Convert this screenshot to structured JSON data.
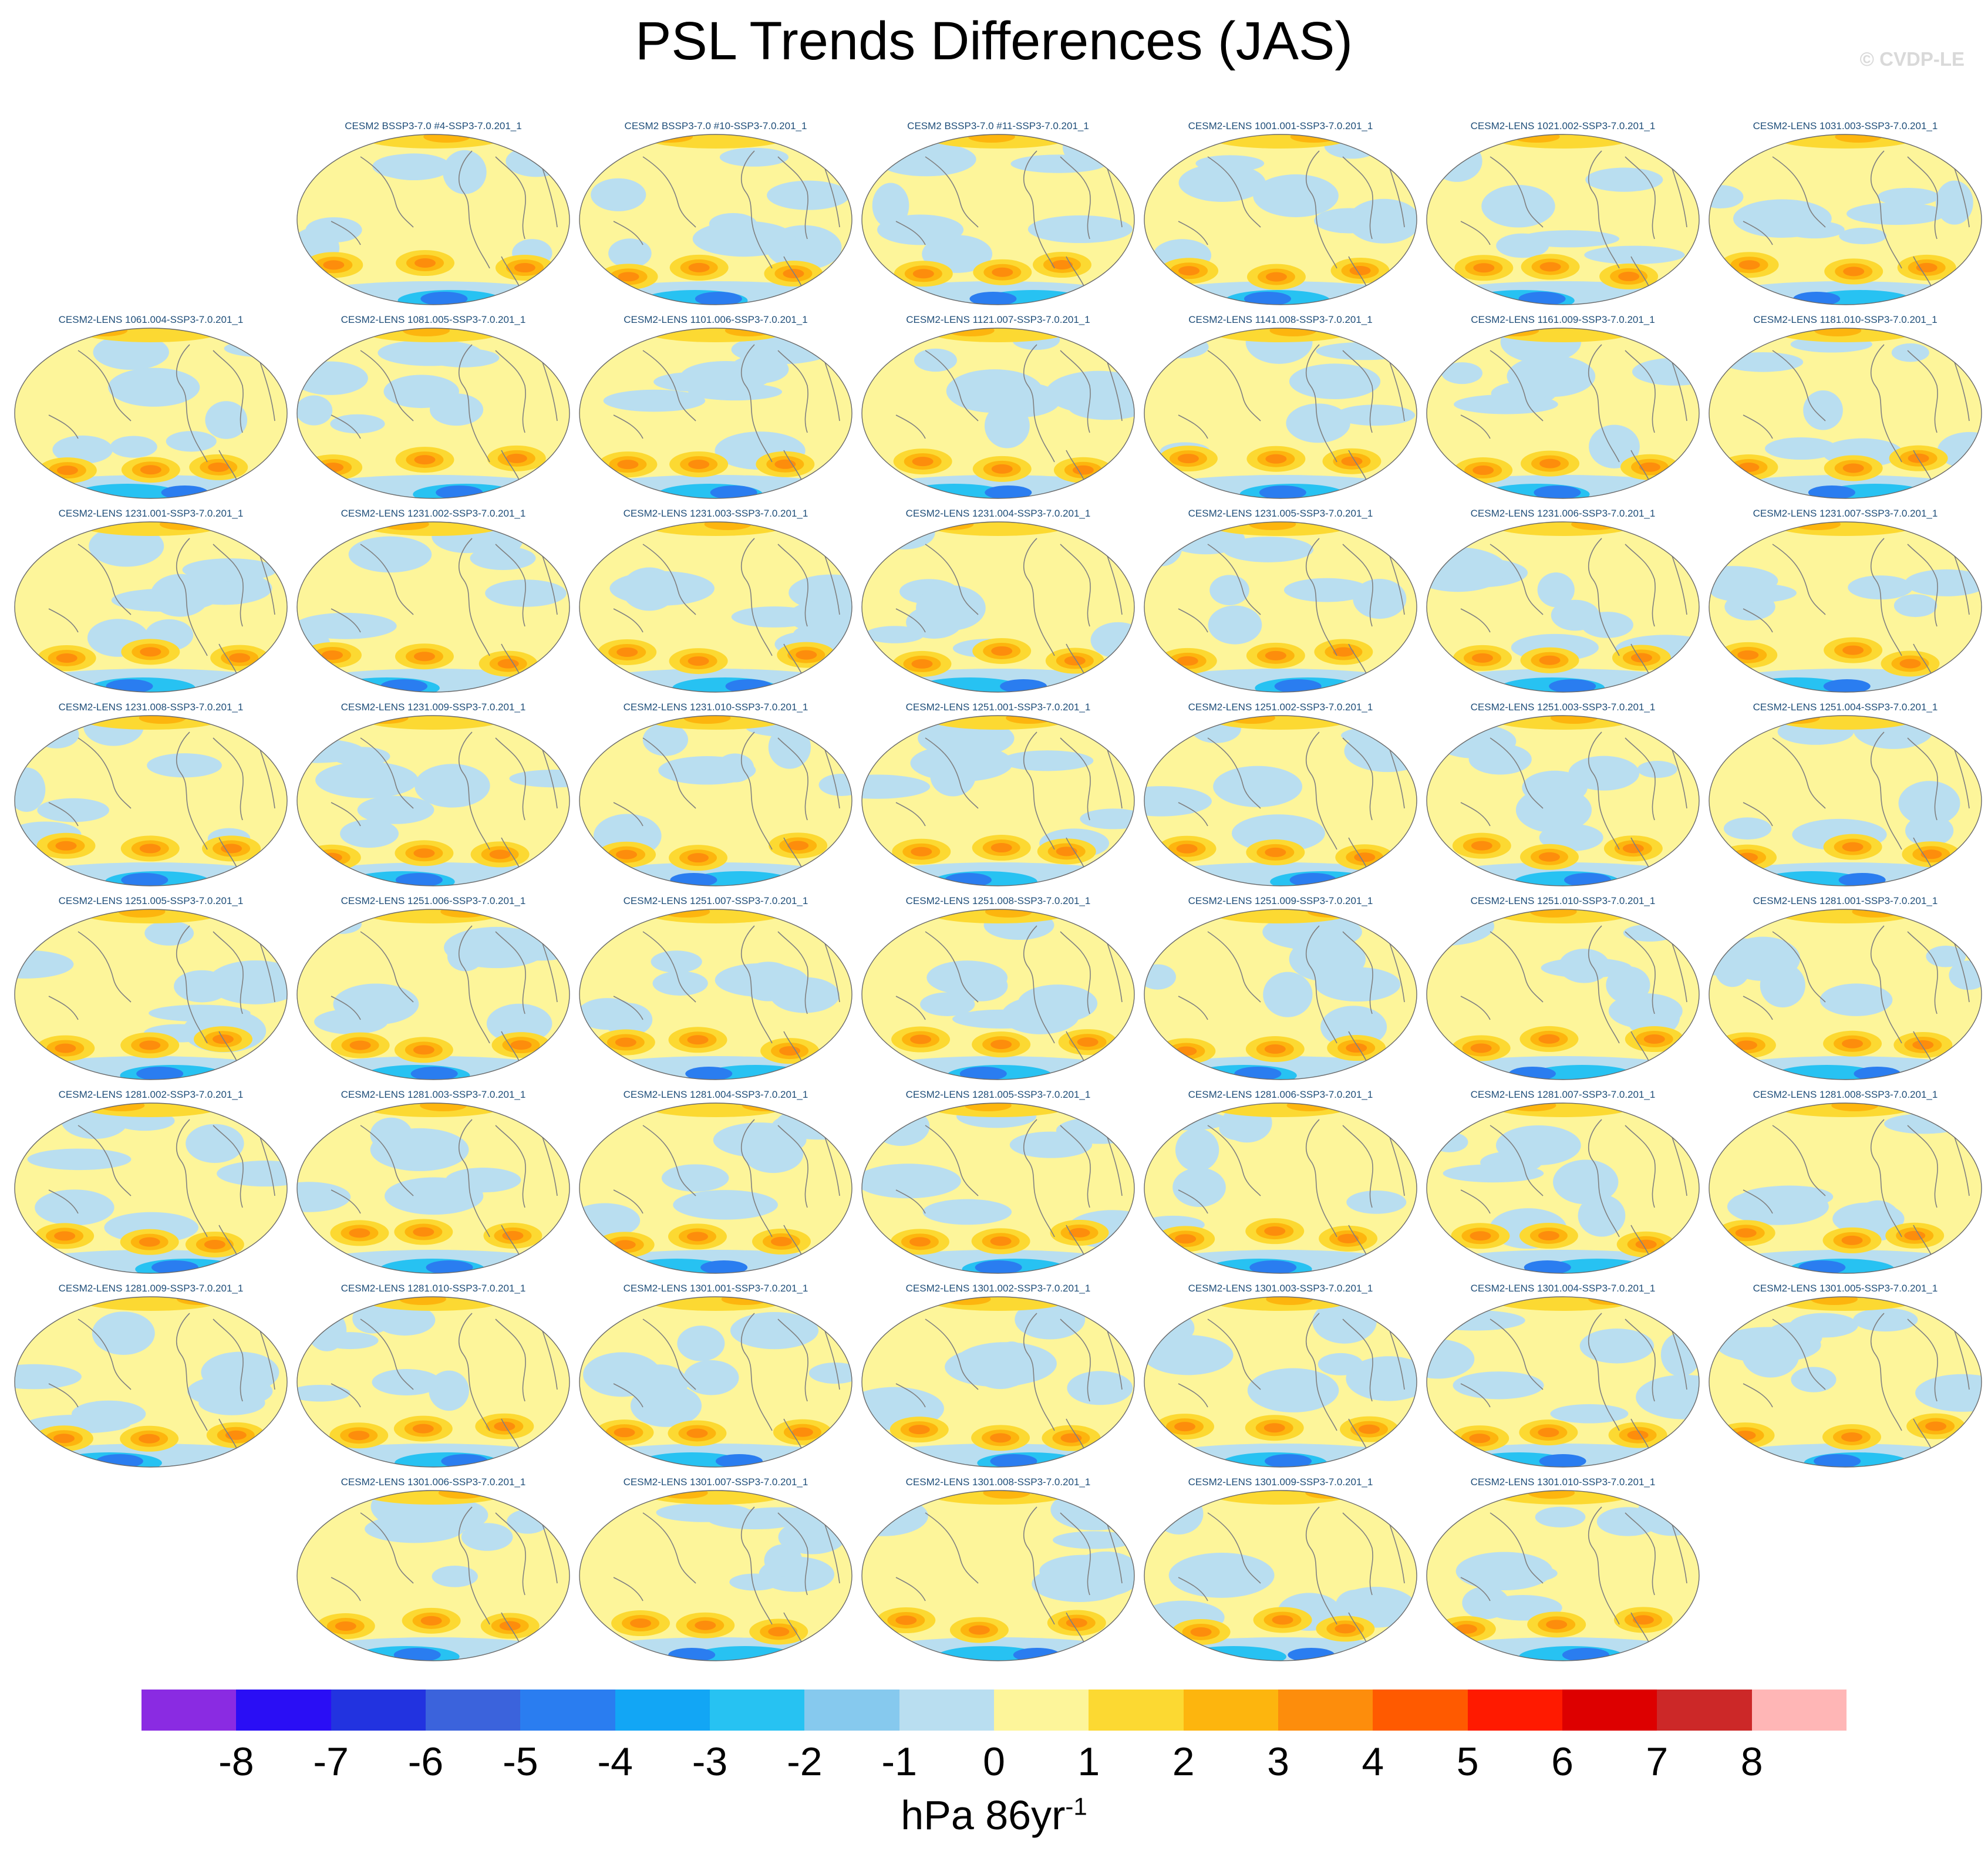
{
  "title": "PSL Trends Differences (JAS)",
  "credit": "© CVDP-LE",
  "panels": [
    {
      "name": "CESM2 BSSP3-7.0 #4-SSP3-7.0.201_1",
      "row": 0,
      "col": 1
    },
    {
      "name": "CESM2 BSSP3-7.0 #10-SSP3-7.0.201_1",
      "row": 0,
      "col": 2
    },
    {
      "name": "CESM2 BSSP3-7.0 #11-SSP3-7.0.201_1",
      "row": 0,
      "col": 3
    },
    {
      "name": "CESM2-LENS 1001.001-SSP3-7.0.201_1",
      "row": 0,
      "col": 4
    },
    {
      "name": "CESM2-LENS 1021.002-SSP3-7.0.201_1",
      "row": 0,
      "col": 5
    },
    {
      "name": "CESM2-LENS 1031.003-SSP3-7.0.201_1",
      "row": 0,
      "col": 6
    },
    {
      "name": "CESM2-LENS 1061.004-SSP3-7.0.201_1",
      "row": 1,
      "col": 0
    },
    {
      "name": "CESM2-LENS 1081.005-SSP3-7.0.201_1",
      "row": 1,
      "col": 1
    },
    {
      "name": "CESM2-LENS 1101.006-SSP3-7.0.201_1",
      "row": 1,
      "col": 2
    },
    {
      "name": "CESM2-LENS 1121.007-SSP3-7.0.201_1",
      "row": 1,
      "col": 3
    },
    {
      "name": "CESM2-LENS 1141.008-SSP3-7.0.201_1",
      "row": 1,
      "col": 4
    },
    {
      "name": "CESM2-LENS 1161.009-SSP3-7.0.201_1",
      "row": 1,
      "col": 5
    },
    {
      "name": "CESM2-LENS 1181.010-SSP3-7.0.201_1",
      "row": 1,
      "col": 6
    },
    {
      "name": "CESM2-LENS 1231.001-SSP3-7.0.201_1",
      "row": 2,
      "col": 0
    },
    {
      "name": "CESM2-LENS 1231.002-SSP3-7.0.201_1",
      "row": 2,
      "col": 1
    },
    {
      "name": "CESM2-LENS 1231.003-SSP3-7.0.201_1",
      "row": 2,
      "col": 2
    },
    {
      "name": "CESM2-LENS 1231.004-SSP3-7.0.201_1",
      "row": 2,
      "col": 3
    },
    {
      "name": "CESM2-LENS 1231.005-SSP3-7.0.201_1",
      "row": 2,
      "col": 4
    },
    {
      "name": "CESM2-LENS 1231.006-SSP3-7.0.201_1",
      "row": 2,
      "col": 5
    },
    {
      "name": "CESM2-LENS 1231.007-SSP3-7.0.201_1",
      "row": 2,
      "col": 6
    },
    {
      "name": "CESM2-LENS 1231.008-SSP3-7.0.201_1",
      "row": 3,
      "col": 0
    },
    {
      "name": "CESM2-LENS 1231.009-SSP3-7.0.201_1",
      "row": 3,
      "col": 1
    },
    {
      "name": "CESM2-LENS 1231.010-SSP3-7.0.201_1",
      "row": 3,
      "col": 2
    },
    {
      "name": "CESM2-LENS 1251.001-SSP3-7.0.201_1",
      "row": 3,
      "col": 3
    },
    {
      "name": "CESM2-LENS 1251.002-SSP3-7.0.201_1",
      "row": 3,
      "col": 4
    },
    {
      "name": "CESM2-LENS 1251.003-SSP3-7.0.201_1",
      "row": 3,
      "col": 5
    },
    {
      "name": "CESM2-LENS 1251.004-SSP3-7.0.201_1",
      "row": 3,
      "col": 6
    },
    {
      "name": "CESM2-LENS 1251.005-SSP3-7.0.201_1",
      "row": 4,
      "col": 0
    },
    {
      "name": "CESM2-LENS 1251.006-SSP3-7.0.201_1",
      "row": 4,
      "col": 1
    },
    {
      "name": "CESM2-LENS 1251.007-SSP3-7.0.201_1",
      "row": 4,
      "col": 2
    },
    {
      "name": "CESM2-LENS 1251.008-SSP3-7.0.201_1",
      "row": 4,
      "col": 3
    },
    {
      "name": "CESM2-LENS 1251.009-SSP3-7.0.201_1",
      "row": 4,
      "col": 4
    },
    {
      "name": "CESM2-LENS 1251.010-SSP3-7.0.201_1",
      "row": 4,
      "col": 5
    },
    {
      "name": "CESM2-LENS 1281.001-SSP3-7.0.201_1",
      "row": 4,
      "col": 6
    },
    {
      "name": "CESM2-LENS 1281.002-SSP3-7.0.201_1",
      "row": 5,
      "col": 0
    },
    {
      "name": "CESM2-LENS 1281.003-SSP3-7.0.201_1",
      "row": 5,
      "col": 1
    },
    {
      "name": "CESM2-LENS 1281.004-SSP3-7.0.201_1",
      "row": 5,
      "col": 2
    },
    {
      "name": "CESM2-LENS 1281.005-SSP3-7.0.201_1",
      "row": 5,
      "col": 3
    },
    {
      "name": "CESM2-LENS 1281.006-SSP3-7.0.201_1",
      "row": 5,
      "col": 4
    },
    {
      "name": "CESM2-LENS 1281.007-SSP3-7.0.201_1",
      "row": 5,
      "col": 5
    },
    {
      "name": "CESM2-LENS 1281.008-SSP3-7.0.201_1",
      "row": 5,
      "col": 6
    },
    {
      "name": "CESM2-LENS 1281.009-SSP3-7.0.201_1",
      "row": 6,
      "col": 0
    },
    {
      "name": "CESM2-LENS 1281.010-SSP3-7.0.201_1",
      "row": 6,
      "col": 1
    },
    {
      "name": "CESM2-LENS 1301.001-SSP3-7.0.201_1",
      "row": 6,
      "col": 2
    },
    {
      "name": "CESM2-LENS 1301.002-SSP3-7.0.201_1",
      "row": 6,
      "col": 3
    },
    {
      "name": "CESM2-LENS 1301.003-SSP3-7.0.201_1",
      "row": 6,
      "col": 4
    },
    {
      "name": "CESM2-LENS 1301.004-SSP3-7.0.201_1",
      "row": 6,
      "col": 5
    },
    {
      "name": "CESM2-LENS 1301.005-SSP3-7.0.201_1",
      "row": 6,
      "col": 6
    },
    {
      "name": "CESM2-LENS 1301.006-SSP3-7.0.201_1",
      "row": 7,
      "col": 1
    },
    {
      "name": "CESM2-LENS 1301.007-SSP3-7.0.201_1",
      "row": 7,
      "col": 2
    },
    {
      "name": "CESM2-LENS 1301.008-SSP3-7.0.201_1",
      "row": 7,
      "col": 3
    },
    {
      "name": "CESM2-LENS 1301.009-SSP3-7.0.201_1",
      "row": 7,
      "col": 4
    },
    {
      "name": "CESM2-LENS 1301.010-SSP3-7.0.201_1",
      "row": 7,
      "col": 5
    }
  ],
  "colorbar": {
    "colors": [
      "#8a2be2",
      "#2a0ef5",
      "#2233e0",
      "#3b63dc",
      "#2a7df0",
      "#12a6f5",
      "#27c2f2",
      "#86c9ee",
      "#b9def0",
      "#fdf59a",
      "#fcd932",
      "#fdb50e",
      "#fd8d0c",
      "#ff5a00",
      "#ff1a00",
      "#dd0000",
      "#cc2828",
      "#ffb6b6"
    ],
    "ticks": [
      "-8",
      "-7",
      "-6",
      "-5",
      "-4",
      "-3",
      "-2",
      "-1",
      "0",
      "1",
      "2",
      "3",
      "4",
      "5",
      "6",
      "7",
      "8"
    ],
    "units": "hPa 86yr",
    "units_exp": "-1"
  },
  "map_colors": {
    "background": "#fdf59a",
    "neg1": "#b9def0",
    "neg2": "#86c9ee",
    "neg3": "#27c2f2",
    "neg4": "#2a7df0",
    "pos1": "#fcd932",
    "pos2": "#fdb50e",
    "pos3": "#fd8d0c",
    "pos4": "#ff1a00",
    "deep": "#2233e0",
    "coast": "#808080"
  }
}
